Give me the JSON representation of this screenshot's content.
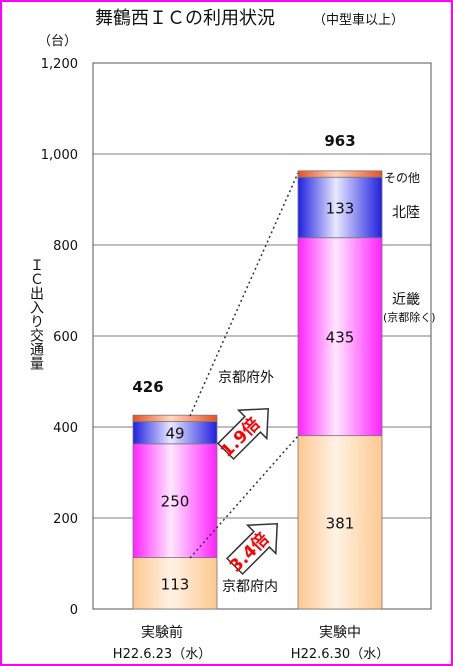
{
  "title": "舞鶴西ＩＣの利用状況",
  "title_sub": "（中型車以上）",
  "colors": {
    "frame": "#ff00ff",
    "other": "#f07040",
    "hokuriku": "#3a3aee",
    "kinki": "#ff33ff",
    "kyoto": "#ffd0a0"
  },
  "chart_data": {
    "type": "bar",
    "stacked": true,
    "unit_label": "（台）",
    "ylabel": "ＩＣ出入り交通量",
    "ylim": [
      0,
      1200
    ],
    "yticks": [
      "0",
      "200",
      "400",
      "600",
      "800",
      "1,000",
      "1,200"
    ],
    "ytick_values": [
      0,
      200,
      400,
      600,
      800,
      1000,
      1200
    ],
    "grid": true,
    "categories": [
      "実験前",
      "実験中"
    ],
    "category_dates": [
      "H22.6.23（水）",
      "H22.6.30（水）"
    ],
    "totals": [
      426,
      963
    ],
    "totals_text": [
      "426",
      "963"
    ],
    "series": [
      {
        "name": "京都府内",
        "values": [
          113,
          381
        ],
        "labels": [
          "113",
          "381"
        ]
      },
      {
        "name": "近畿（京都除く）",
        "values": [
          250,
          435
        ],
        "labels": [
          "250",
          "435"
        ]
      },
      {
        "name": "北陸",
        "values": [
          49,
          133
        ],
        "labels": [
          "49",
          "133"
        ]
      },
      {
        "name": "その他",
        "values": [
          14,
          14
        ],
        "labels": [
          "",
          ""
        ]
      }
    ],
    "legend": {
      "other": "その他",
      "hokuriku": "北陸",
      "kinki": "近畿",
      "kinki_sub": "(京都除く)"
    },
    "annotations": {
      "outside_label": "京都府外",
      "inside_label": "京都府内",
      "outside_multiplier": "1.9倍",
      "inside_multiplier": "3.4倍"
    }
  }
}
